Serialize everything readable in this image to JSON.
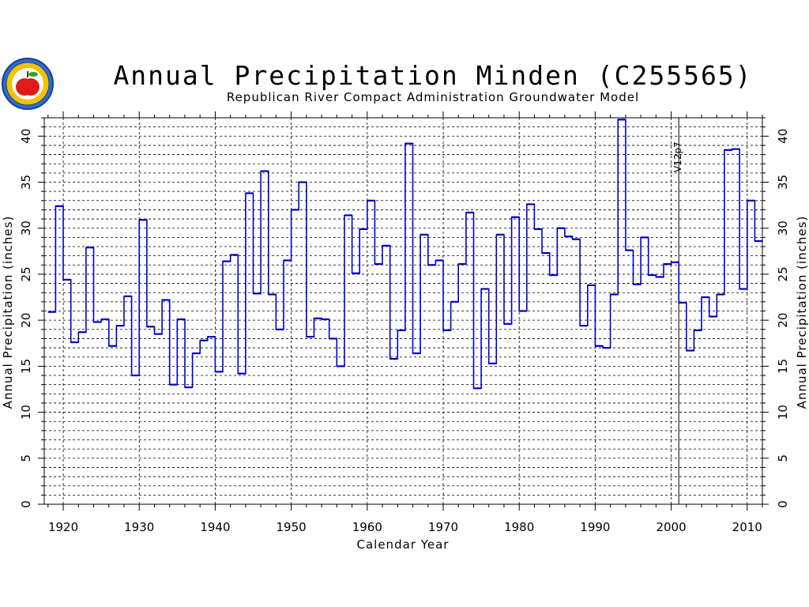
{
  "chart_data": {
    "type": "line",
    "style": "step",
    "title": "Annual Precipitation Minden (C255565)",
    "subtitle": "Republican River Compact Administration Groundwater Model",
    "xlabel": "Calendar Year",
    "ylabel": "Annual Precipitation (inches)",
    "ylabel_right": "Annual Precipitation (inches)",
    "xlim": [
      1917.5,
      2012
    ],
    "ylim": [
      0,
      42
    ],
    "x_ticks": [
      1920,
      1930,
      1940,
      1950,
      1960,
      1970,
      1980,
      1990,
      2000,
      2010
    ],
    "y_ticks": [
      0,
      5,
      10,
      15,
      20,
      25,
      30,
      35,
      40
    ],
    "grid": "horizontal dashed every 1 inch; vertical dashed every 10 years",
    "annotation": {
      "text": "V12p7",
      "x": 2001
    },
    "colors": {
      "line": "#0000c8",
      "grid": "#000000"
    },
    "x": [
      1918,
      1919,
      1920,
      1921,
      1922,
      1923,
      1924,
      1925,
      1926,
      1927,
      1928,
      1929,
      1930,
      1931,
      1932,
      1933,
      1934,
      1935,
      1936,
      1937,
      1938,
      1939,
      1940,
      1941,
      1942,
      1943,
      1944,
      1945,
      1946,
      1947,
      1948,
      1949,
      1950,
      1951,
      1952,
      1953,
      1954,
      1955,
      1956,
      1957,
      1958,
      1959,
      1960,
      1961,
      1962,
      1963,
      1964,
      1965,
      1966,
      1967,
      1968,
      1969,
      1970,
      1971,
      1972,
      1973,
      1974,
      1975,
      1976,
      1977,
      1978,
      1979,
      1980,
      1981,
      1982,
      1983,
      1984,
      1985,
      1986,
      1987,
      1988,
      1989,
      1990,
      1991,
      1992,
      1993,
      1994,
      1995,
      1996,
      1997,
      1998,
      1999,
      2000,
      2001,
      2002,
      2003,
      2004,
      2005,
      2006,
      2007,
      2008,
      2009,
      2010,
      2011
    ],
    "values": [
      20.9,
      32.4,
      24.4,
      17.6,
      18.7,
      27.9,
      19.8,
      20.1,
      17.2,
      19.4,
      22.6,
      14.0,
      30.9,
      19.3,
      18.5,
      22.2,
      13.0,
      20.1,
      12.7,
      16.4,
      17.8,
      18.2,
      14.4,
      26.4,
      27.1,
      14.2,
      33.8,
      22.9,
      36.2,
      22.8,
      19.0,
      26.5,
      32.0,
      35.0,
      18.2,
      20.2,
      20.1,
      18.0,
      15.0,
      31.4,
      25.1,
      29.9,
      33.0,
      26.1,
      28.1,
      15.8,
      18.9,
      39.2,
      16.4,
      29.3,
      26.0,
      26.5,
      18.9,
      22.0,
      26.1,
      31.7,
      12.6,
      23.4,
      15.3,
      29.3,
      19.6,
      31.2,
      21.0,
      32.6,
      29.9,
      27.3,
      24.9,
      30.0,
      29.1,
      28.8,
      19.4,
      23.8,
      17.2,
      17.0,
      22.8,
      41.8,
      27.6,
      23.9,
      29.0,
      24.9,
      24.7,
      26.1,
      26.3,
      21.9,
      16.7,
      18.9,
      22.5,
      20.4,
      22.8,
      38.5,
      38.6,
      23.4,
      33.0,
      28.6
    ]
  }
}
